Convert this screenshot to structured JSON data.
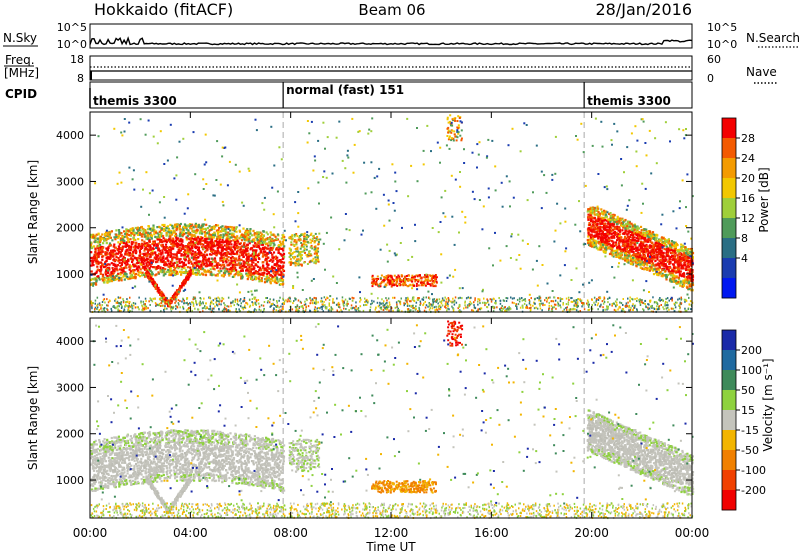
{
  "header": {
    "station": "Hokkaido (fitACF)",
    "beam": "Beam 06",
    "date": "28/Jan/2016"
  },
  "noise_panel": {
    "left_label": "N.Sky",
    "right_label": "N.Search",
    "tick_top": "10^5",
    "tick_bottom": "10^0",
    "right_tick_top": "10^5",
    "right_tick_bottom": "10^0"
  },
  "freq_panel": {
    "left_label_1": "Freq.",
    "left_label_2": "[MHz]",
    "right_label": "Nave",
    "left_ticks": [
      "18",
      "8"
    ],
    "right_ticks": [
      "60",
      "0"
    ]
  },
  "cpid_panel": {
    "label": "CPID",
    "segments": [
      {
        "name": "themis 3300",
        "start_hour": 0,
        "end_hour": 7.7
      },
      {
        "name": "normal (fast) 151",
        "start_hour": 7.7,
        "end_hour": 19.7
      },
      {
        "name": "themis 3300",
        "start_hour": 19.7,
        "end_hour": 24
      }
    ]
  },
  "power_panel": {
    "ylabel": "Slant Range [km]",
    "cbar_label": "Power [dB]",
    "cbar_ticks": [
      "28",
      "24",
      "20",
      "16",
      "12",
      "8",
      "4"
    ],
    "cbar_colors": [
      "#f40000",
      "#f45a00",
      "#f49b00",
      "#f2c800",
      "#9fcf3a",
      "#4f9b5a",
      "#2a6e84",
      "#1a3cb0",
      "#0018f0"
    ]
  },
  "velocity_panel": {
    "ylabel": "Velocity [m s⁻¹]",
    "ylabel_left": "Slant Range [km]",
    "cbar_ticks": [
      "200",
      "100",
      "50",
      "15",
      "-15",
      "-50",
      "-100",
      "-200"
    ],
    "cbar_colors": [
      "#1a2aa8",
      "#1f6aa0",
      "#3e8a5a",
      "#8ed13e",
      "#c4c4bc",
      "#f2b500",
      "#f08000",
      "#f04000",
      "#f00000"
    ]
  },
  "chart_data": {
    "type": "heatmap",
    "xlabel": "Time UT",
    "x_tick_labels": [
      "00:00",
      "04:00",
      "08:00",
      "12:00",
      "16:00",
      "20:00",
      "00:00"
    ],
    "x_range_hours": [
      0,
      24
    ],
    "y_range_km": [
      180,
      4500
    ],
    "y_tick_labels": [
      "1000",
      "2000",
      "3000",
      "4000"
    ],
    "y_ticks_km": [
      1000,
      2000,
      3000,
      4000
    ],
    "cpid_boundaries_hours": [
      7.7,
      19.7
    ]
  }
}
